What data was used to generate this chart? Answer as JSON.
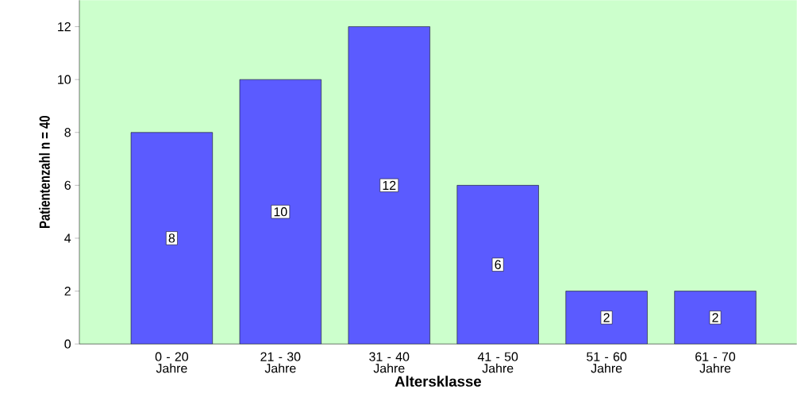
{
  "chart_data": {
    "type": "bar",
    "xlabel": "Altersklasse",
    "ylabel": "Patientenzahl n = 40",
    "categories": [
      "0 - 20 Jahre",
      "21 - 30 Jahre",
      "31 - 40 Jahre",
      "41 - 50 Jahre",
      "51 - 60 Jahre",
      "61 - 70 Jahre"
    ],
    "values": [
      8,
      10,
      12,
      6,
      2,
      2
    ],
    "color": "#5b5bff",
    "ylim": [
      0,
      13
    ],
    "yticks": [
      0,
      2,
      4,
      6,
      8,
      10,
      12
    ],
    "data_labels": true
  }
}
